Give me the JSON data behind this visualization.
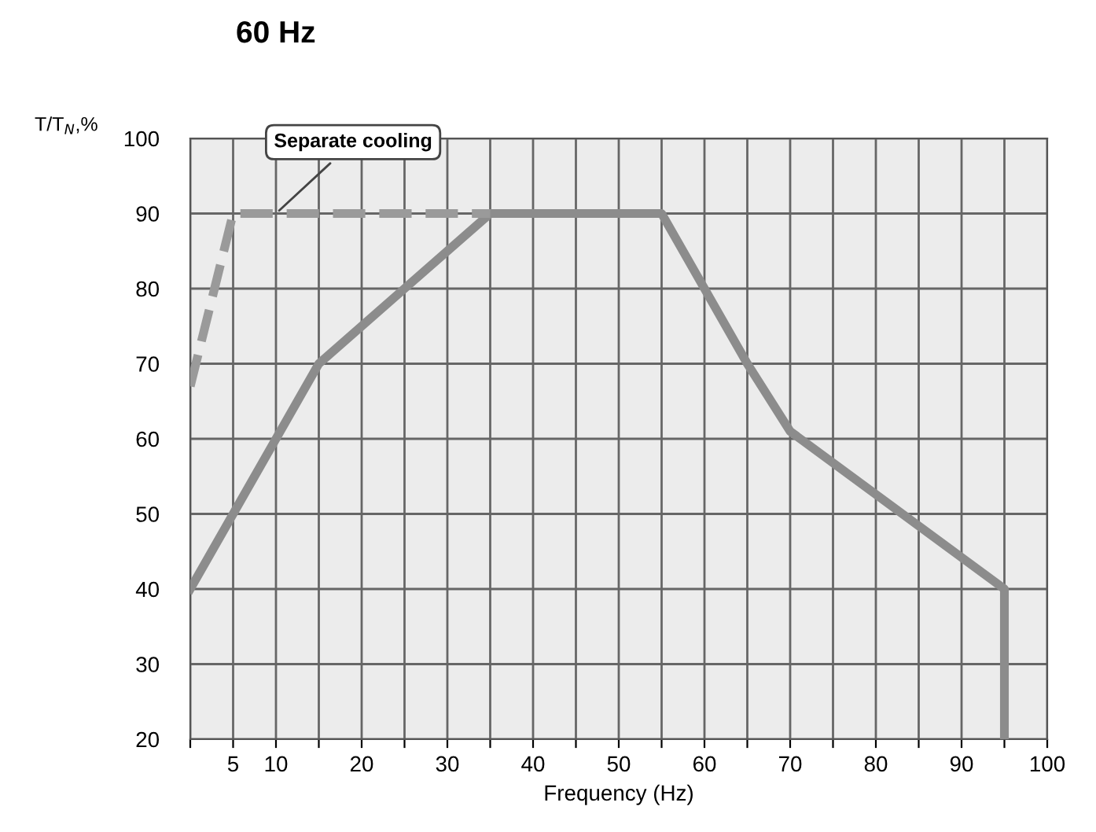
{
  "chart_data": {
    "type": "line",
    "title": "60 Hz",
    "xlabel": "Frequency (Hz)",
    "ylabel": "T/T$_{N}$,%",
    "xlim": [
      0,
      100
    ],
    "ylim": [
      20,
      100
    ],
    "xticks": [
      {
        "value": 0,
        "label": null
      },
      5,
      10,
      {
        "value": 15,
        "label": null
      },
      20,
      {
        "value": 25,
        "label": null
      },
      30,
      {
        "value": 35,
        "label": null
      },
      40,
      {
        "value": 45,
        "label": null
      },
      50,
      {
        "value": 55,
        "label": null
      },
      60,
      {
        "value": 65,
        "label": null
      },
      70,
      {
        "value": 75,
        "label": null
      },
      80,
      {
        "value": 85,
        "label": null
      },
      90,
      {
        "value": 95,
        "label": null
      },
      100
    ],
    "yticks": [
      20,
      30,
      40,
      50,
      60,
      70,
      80,
      90,
      100
    ],
    "grid": true,
    "series": [
      {
        "x": [
          0,
          15,
          35,
          55,
          65,
          70,
          95,
          95
        ],
        "values": [
          40,
          70,
          90,
          90,
          70,
          61,
          40,
          20
        ],
        "color": "#8c8c8c",
        "line_style": "solid"
      },
      {
        "x": [
          0,
          5,
          35
        ],
        "values": [
          67,
          90,
          90
        ],
        "color": "#9a9a9a",
        "line_style": "dashed"
      }
    ],
    "annotations": [
      {
        "text": "Separate cooling",
        "x": 10,
        "y": 90
      }
    ]
  }
}
